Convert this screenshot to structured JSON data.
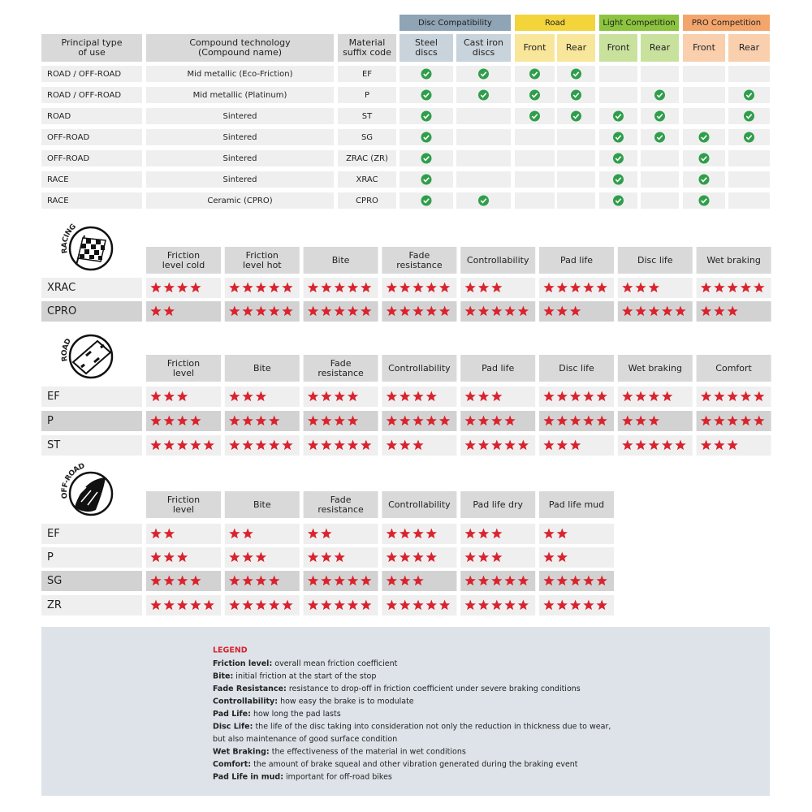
{
  "compatibility_table": {
    "group_headers": [
      "Disc Compatibility",
      "Road",
      "Light Competition",
      "PRO Competition"
    ],
    "columns": [
      [
        "Principal type",
        "of use"
      ],
      [
        "Compound technology",
        "(Compound name)"
      ],
      [
        "Material",
        "suffix code"
      ],
      [
        "Steel",
        "discs"
      ],
      [
        "Cast iron",
        "discs"
      ],
      [
        "Front"
      ],
      [
        "Rear"
      ],
      [
        "Front"
      ],
      [
        "Rear"
      ],
      [
        "Front"
      ],
      [
        "Rear"
      ]
    ],
    "rows": [
      {
        "use": "ROAD / OFF-ROAD",
        "compound": "Mid metallic (Eco-Friction)",
        "code": "EF",
        "checks": [
          true,
          true,
          true,
          true,
          false,
          false,
          false,
          false
        ]
      },
      {
        "use": "ROAD / OFF-ROAD",
        "compound": "Mid metallic (Platinum)",
        "code": "P",
        "checks": [
          true,
          true,
          true,
          true,
          false,
          true,
          false,
          true
        ]
      },
      {
        "use": "ROAD",
        "compound": "Sintered",
        "code": "ST",
        "checks": [
          true,
          false,
          true,
          true,
          true,
          true,
          false,
          true
        ]
      },
      {
        "use": "OFF-ROAD",
        "compound": "Sintered",
        "code": "SG",
        "checks": [
          true,
          false,
          false,
          false,
          true,
          true,
          true,
          true
        ]
      },
      {
        "use": "OFF-ROAD",
        "compound": "Sintered",
        "code": "ZRAC (ZR)",
        "checks": [
          true,
          false,
          false,
          false,
          true,
          false,
          true,
          false
        ]
      },
      {
        "use": "RACE",
        "compound": "Sintered",
        "code": "XRAC",
        "checks": [
          true,
          false,
          false,
          false,
          true,
          false,
          true,
          false
        ]
      },
      {
        "use": "RACE",
        "compound": "Ceramic (CPRO)",
        "code": "CPRO",
        "checks": [
          true,
          true,
          false,
          false,
          true,
          false,
          true,
          false
        ]
      }
    ]
  },
  "rating_sections": [
    {
      "label": "RACING",
      "criteria": [
        [
          "Friction",
          "level cold"
        ],
        [
          "Friction",
          "level hot"
        ],
        [
          "Bite"
        ],
        [
          "Fade",
          "resistance"
        ],
        [
          "Controllability"
        ],
        [
          "Pad life"
        ],
        [
          "Disc life"
        ],
        [
          "Wet braking"
        ]
      ],
      "rows": [
        {
          "code": "XRAC",
          "ratings": [
            4,
            5,
            5,
            5,
            3,
            5,
            3,
            5
          ]
        },
        {
          "code": "CPRO",
          "ratings": [
            2,
            5,
            5,
            5,
            5,
            3,
            5,
            3
          ]
        }
      ]
    },
    {
      "label": "ROAD",
      "criteria": [
        [
          "Friction",
          "level"
        ],
        [
          "Bite"
        ],
        [
          "Fade",
          "resistance"
        ],
        [
          "Controllability"
        ],
        [
          "Pad life"
        ],
        [
          "Disc life"
        ],
        [
          "Wet braking"
        ],
        [
          "Comfort"
        ]
      ],
      "rows": [
        {
          "code": "EF",
          "ratings": [
            3,
            3,
            4,
            4,
            3,
            5,
            4,
            5
          ]
        },
        {
          "code": "P",
          "ratings": [
            4,
            4,
            4,
            5,
            4,
            5,
            3,
            5
          ]
        },
        {
          "code": "ST",
          "ratings": [
            5,
            5,
            5,
            3,
            5,
            3,
            5,
            3
          ]
        }
      ]
    },
    {
      "label": "OFF-ROAD",
      "criteria": [
        [
          "Friction",
          "level"
        ],
        [
          "Bite"
        ],
        [
          "Fade",
          "resistance"
        ],
        [
          "Controllability"
        ],
        [
          "Pad life dry"
        ],
        [
          "Pad life mud"
        ]
      ],
      "rows": [
        {
          "code": "EF",
          "ratings": [
            2,
            2,
            2,
            4,
            3,
            2
          ]
        },
        {
          "code": "P",
          "ratings": [
            3,
            3,
            3,
            4,
            3,
            2
          ]
        },
        {
          "code": "SG",
          "ratings": [
            4,
            4,
            5,
            3,
            5,
            5
          ]
        },
        {
          "code": "ZR",
          "ratings": [
            5,
            5,
            5,
            5,
            5,
            5
          ]
        }
      ]
    }
  ],
  "legend": {
    "title": "LEGEND",
    "items": [
      {
        "term": "Friction level:",
        "text": " overall mean friction coefficient"
      },
      {
        "term": "Bite:",
        "text": " initial friction at the start of the stop"
      },
      {
        "term": "Fade Resistance:",
        "text": " resistance to drop-off in friction coefficient under severe braking conditions"
      },
      {
        "term": "Controllability:",
        "text": " how easy the brake is to modulate"
      },
      {
        "term": "Pad Life:",
        "text": " how long the pad lasts"
      },
      {
        "term": "Disc Life:",
        "text": " the life of the disc taking into consideration not only the reduction in thickness due to wear,"
      },
      {
        "text": "but also maintenance of good surface condition"
      },
      {
        "term": "Wet Braking:",
        "text": " the effectiveness of the material in wet conditions"
      },
      {
        "term": "Comfort:",
        "text": " the amount of brake squeal and other vibration generated during the braking event"
      },
      {
        "term": "Pad Life in mud:",
        "text": " important for off-road bikes"
      }
    ]
  }
}
